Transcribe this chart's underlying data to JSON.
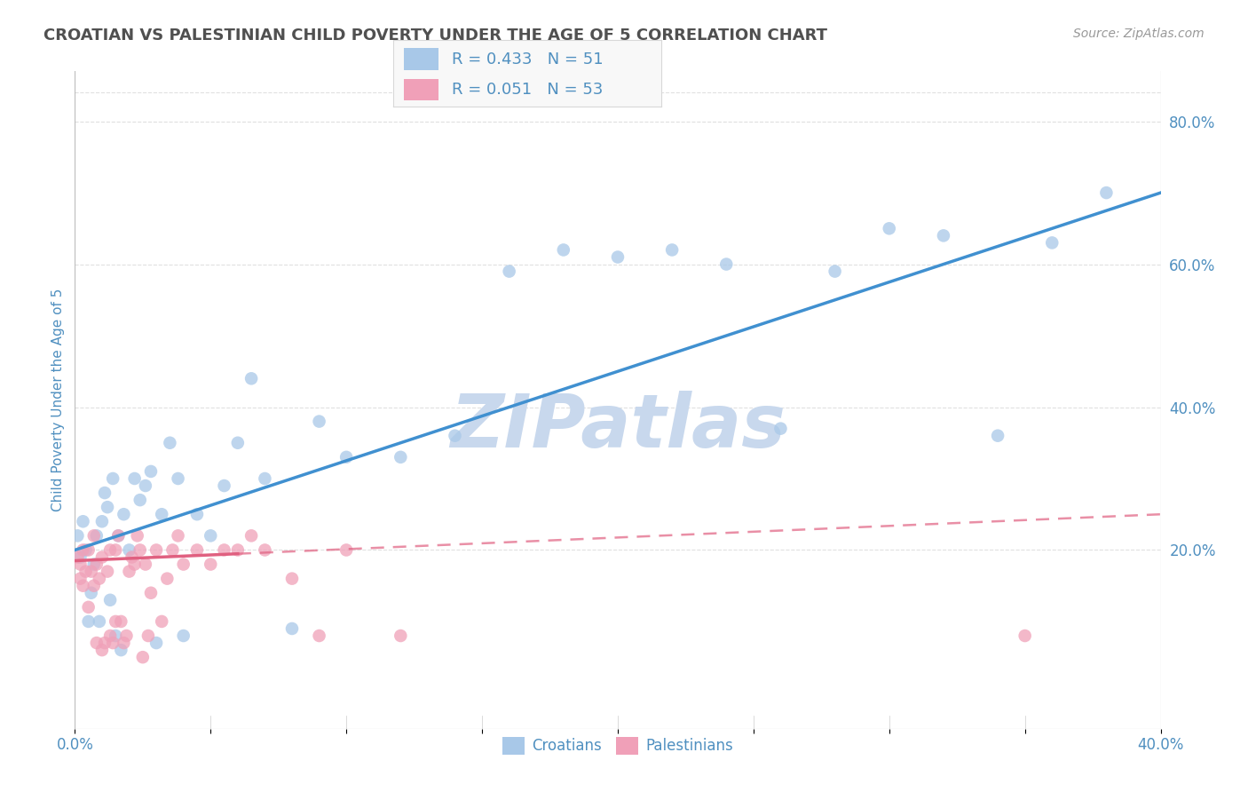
{
  "title": "CROATIAN VS PALESTINIAN CHILD POVERTY UNDER THE AGE OF 5 CORRELATION CHART",
  "source": "Source: ZipAtlas.com",
  "ylabel": "Child Poverty Under the Age of 5",
  "xlim": [
    0.0,
    0.4
  ],
  "ylim": [
    -0.05,
    0.87
  ],
  "xtick_vals": [
    0.0,
    0.05,
    0.1,
    0.15,
    0.2,
    0.25,
    0.3,
    0.35,
    0.4
  ],
  "xtick_labels_show": [
    "0.0%",
    "",
    "",
    "",
    "",
    "",
    "",
    "",
    "40.0%"
  ],
  "ytick_right_vals": [
    0.2,
    0.4,
    0.6,
    0.8
  ],
  "ytick_right_labels": [
    "20.0%",
    "40.0%",
    "60.0%",
    "80.0%"
  ],
  "croatians": {
    "label": "Croatians",
    "R": 0.433,
    "N": 51,
    "color": "#a8c8e8",
    "trend_color": "#4090d0",
    "x": [
      0.001,
      0.002,
      0.003,
      0.004,
      0.005,
      0.006,
      0.007,
      0.008,
      0.009,
      0.01,
      0.011,
      0.012,
      0.013,
      0.014,
      0.015,
      0.016,
      0.017,
      0.018,
      0.02,
      0.022,
      0.024,
      0.026,
      0.028,
      0.03,
      0.032,
      0.035,
      0.038,
      0.04,
      0.045,
      0.05,
      0.055,
      0.06,
      0.065,
      0.07,
      0.08,
      0.09,
      0.1,
      0.12,
      0.14,
      0.16,
      0.18,
      0.2,
      0.22,
      0.24,
      0.26,
      0.28,
      0.3,
      0.32,
      0.34,
      0.36,
      0.38
    ],
    "y": [
      0.22,
      0.19,
      0.24,
      0.2,
      0.1,
      0.14,
      0.18,
      0.22,
      0.1,
      0.24,
      0.28,
      0.26,
      0.13,
      0.3,
      0.08,
      0.22,
      0.06,
      0.25,
      0.2,
      0.3,
      0.27,
      0.29,
      0.31,
      0.07,
      0.25,
      0.35,
      0.3,
      0.08,
      0.25,
      0.22,
      0.29,
      0.35,
      0.44,
      0.3,
      0.09,
      0.38,
      0.33,
      0.33,
      0.36,
      0.59,
      0.62,
      0.61,
      0.62,
      0.6,
      0.37,
      0.59,
      0.65,
      0.64,
      0.36,
      0.63,
      0.7
    ]
  },
  "palestinians": {
    "label": "Palestinians",
    "R": 0.051,
    "N": 53,
    "color": "#f0a0b8",
    "trend_color": "#e06080",
    "x": [
      0.001,
      0.002,
      0.002,
      0.003,
      0.003,
      0.004,
      0.005,
      0.005,
      0.006,
      0.007,
      0.007,
      0.008,
      0.008,
      0.009,
      0.01,
      0.01,
      0.011,
      0.012,
      0.013,
      0.013,
      0.014,
      0.015,
      0.015,
      0.016,
      0.017,
      0.018,
      0.019,
      0.02,
      0.021,
      0.022,
      0.023,
      0.024,
      0.025,
      0.026,
      0.027,
      0.028,
      0.03,
      0.032,
      0.034,
      0.036,
      0.038,
      0.04,
      0.045,
      0.05,
      0.055,
      0.06,
      0.065,
      0.07,
      0.08,
      0.09,
      0.1,
      0.12,
      0.35
    ],
    "y": [
      0.19,
      0.16,
      0.18,
      0.15,
      0.2,
      0.17,
      0.12,
      0.2,
      0.17,
      0.15,
      0.22,
      0.18,
      0.07,
      0.16,
      0.06,
      0.19,
      0.07,
      0.17,
      0.08,
      0.2,
      0.07,
      0.2,
      0.1,
      0.22,
      0.1,
      0.07,
      0.08,
      0.17,
      0.19,
      0.18,
      0.22,
      0.2,
      0.05,
      0.18,
      0.08,
      0.14,
      0.2,
      0.1,
      0.16,
      0.2,
      0.22,
      0.18,
      0.2,
      0.18,
      0.2,
      0.2,
      0.22,
      0.2,
      0.16,
      0.08,
      0.2,
      0.08,
      0.08
    ]
  },
  "watermark": "ZIPatlas",
  "watermark_color": "#c8d8ed",
  "background_color": "#ffffff",
  "grid_color": "#e0e0e0",
  "title_color": "#505050",
  "axis_label_color": "#5090c0",
  "tick_label_color": "#5090c0",
  "source_color": "#999999"
}
